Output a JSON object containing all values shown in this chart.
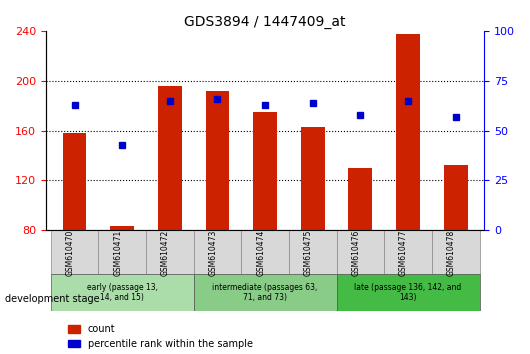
{
  "title": "GDS3894 / 1447409_at",
  "samples": [
    "GSM610470",
    "GSM610471",
    "GSM610472",
    "GSM610473",
    "GSM610474",
    "GSM610475",
    "GSM610476",
    "GSM610477",
    "GSM610478"
  ],
  "counts": [
    158,
    83,
    196,
    192,
    175,
    163,
    130,
    238,
    132
  ],
  "percentile_ranks": [
    63,
    43,
    65,
    66,
    63,
    64,
    58,
    65,
    57
  ],
  "ylim_left": [
    80,
    240
  ],
  "ylim_right": [
    0,
    100
  ],
  "yticks_left": [
    80,
    120,
    160,
    200,
    240
  ],
  "yticks_right": [
    0,
    25,
    50,
    75,
    100
  ],
  "bar_color": "#cc2200",
  "dot_color": "#0000cc",
  "grid_color": "#000000",
  "groups": [
    {
      "label": "early (passage 13,\n14, and 15)",
      "samples": [
        "GSM610470",
        "GSM610471",
        "GSM610472"
      ],
      "color": "#aaddaa",
      "border": "#888888"
    },
    {
      "label": "intermediate (passages 63,\n71, and 73)",
      "samples": [
        "GSM610473",
        "GSM610474",
        "GSM610475"
      ],
      "color": "#88cc88",
      "border": "#888888"
    },
    {
      "label": "late (passage 136, 142, and\n143)",
      "samples": [
        "GSM610476",
        "GSM610477",
        "GSM610478"
      ],
      "color": "#44bb44",
      "border": "#888888"
    }
  ],
  "group_colors": [
    "#aaddaa",
    "#88cc88",
    "#44bb44"
  ],
  "dev_stage_label": "development stage",
  "legend_count_label": "count",
  "legend_pct_label": "percentile rank within the sample",
  "bar_width": 0.5,
  "chart_bg": "#e8e8e8",
  "plot_bg": "#ffffff"
}
